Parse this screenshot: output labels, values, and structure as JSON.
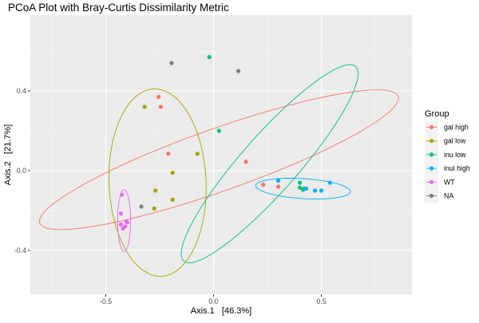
{
  "chart_data": {
    "type": "scatter",
    "title": "PCoA Plot with Bray-Curtis Dissimilarity Metric",
    "xlabel": "Axis.1   [46.3%]",
    "ylabel": "Axis.2   [21.7%]",
    "xlim": [
      -0.85,
      0.92
    ],
    "ylim": [
      -0.62,
      0.78
    ],
    "x_ticks": [
      -0.5,
      0.0,
      0.5
    ],
    "x_tick_labels": [
      "-0.5",
      "0.0",
      "0.5"
    ],
    "y_ticks": [
      -0.4,
      0.0,
      0.4
    ],
    "y_tick_labels": [
      "-0.4",
      "0.0",
      "0.4"
    ],
    "grid": true,
    "legend_position": "right",
    "legend_title": "Group",
    "series": [
      {
        "name": "gal high",
        "color": "#F8766D",
        "points": [
          {
            "x": -0.255,
            "y": 0.37
          },
          {
            "x": -0.245,
            "y": 0.32
          },
          {
            "x": -0.21,
            "y": 0.085
          },
          {
            "x": 0.15,
            "y": 0.045
          },
          {
            "x": 0.23,
            "y": -0.07
          },
          {
            "x": 0.3,
            "y": -0.08
          }
        ],
        "ellipse": {
          "cx": 0.025,
          "cy": 0.055,
          "rx": 0.89,
          "ry": 0.155,
          "angle_deg": 21
        }
      },
      {
        "name": "gal low",
        "color": "#A3A500",
        "points": [
          {
            "x": -0.32,
            "y": 0.32
          },
          {
            "x": -0.075,
            "y": 0.085
          },
          {
            "x": -0.19,
            "y": -0.01
          },
          {
            "x": -0.27,
            "y": -0.1
          },
          {
            "x": -0.19,
            "y": -0.145
          },
          {
            "x": -0.275,
            "y": -0.19
          }
        ],
        "ellipse": {
          "cx": -0.26,
          "cy": -0.06,
          "rx": 0.47,
          "ry": 0.225,
          "angle_deg": 92
        }
      },
      {
        "name": "inu low",
        "color": "#00BF7D",
        "points": [
          {
            "x": -0.02,
            "y": 0.57
          },
          {
            "x": 0.025,
            "y": 0.2
          },
          {
            "x": 0.4,
            "y": -0.06
          },
          {
            "x": 0.4,
            "y": -0.085
          },
          {
            "x": 0.42,
            "y": -0.09
          },
          {
            "x": 0.415,
            "y": -0.095
          }
        ],
        "ellipse": {
          "cx": 0.26,
          "cy": 0.035,
          "rx": 0.63,
          "ry": 0.135,
          "angle_deg": 51
        }
      },
      {
        "name": "inul high",
        "color": "#00B0F6",
        "points": [
          {
            "x": 0.3,
            "y": -0.05
          },
          {
            "x": 0.54,
            "y": -0.06
          },
          {
            "x": 0.47,
            "y": -0.1
          },
          {
            "x": 0.5,
            "y": -0.1
          },
          {
            "x": 0.43,
            "y": -0.09
          }
        ],
        "ellipse": {
          "cx": 0.415,
          "cy": -0.09,
          "rx": 0.22,
          "ry": 0.05,
          "angle_deg": -4
        }
      },
      {
        "name": "WT",
        "color": "#E76BF3",
        "points": [
          {
            "x": -0.425,
            "y": -0.12
          },
          {
            "x": -0.43,
            "y": -0.215
          },
          {
            "x": -0.43,
            "y": -0.27
          },
          {
            "x": -0.42,
            "y": -0.29
          },
          {
            "x": -0.405,
            "y": -0.255
          },
          {
            "x": -0.4,
            "y": -0.26
          },
          {
            "x": -0.41,
            "y": -0.28
          }
        ],
        "ellipse": {
          "cx": -0.415,
          "cy": -0.25,
          "rx": 0.155,
          "ry": 0.03,
          "angle_deg": 90
        }
      },
      {
        "name": "NA",
        "color": "#7F7F7F",
        "points": [
          {
            "x": -0.195,
            "y": 0.54
          },
          {
            "x": 0.115,
            "y": 0.5
          },
          {
            "x": -0.335,
            "y": -0.18
          }
        ]
      }
    ]
  }
}
